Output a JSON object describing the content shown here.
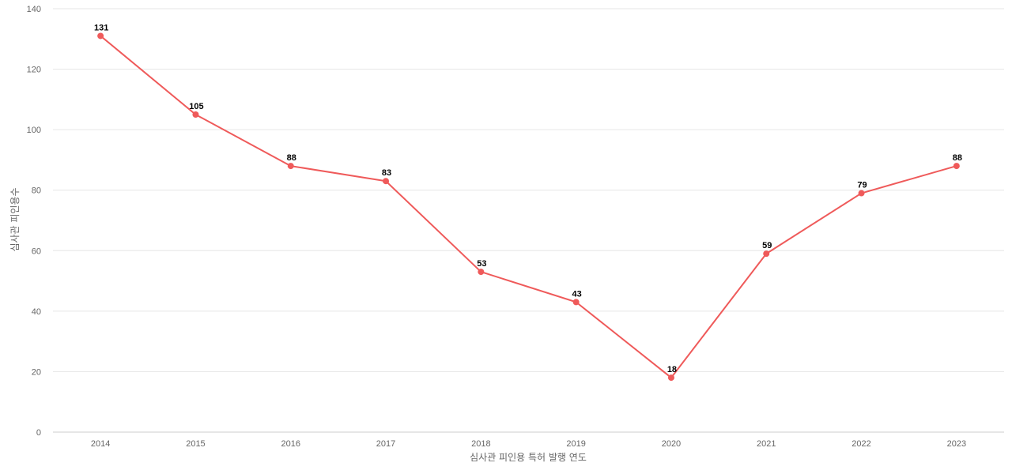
{
  "chart_data": {
    "type": "line",
    "x": [
      "2014",
      "2015",
      "2016",
      "2017",
      "2018",
      "2019",
      "2020",
      "2021",
      "2022",
      "2023"
    ],
    "series": [
      {
        "values": [
          131,
          105,
          88,
          83,
          53,
          43,
          18,
          59,
          79,
          88
        ]
      }
    ],
    "xlabel": "심사관 피인용 특허 발행 연도",
    "ylabel": "심사관 피인용수",
    "ylim": [
      0,
      140
    ],
    "yticks": [
      0,
      20,
      40,
      60,
      80,
      100,
      120,
      140
    ],
    "grid": true,
    "data_labels": true,
    "color": "#ef5a5a"
  }
}
